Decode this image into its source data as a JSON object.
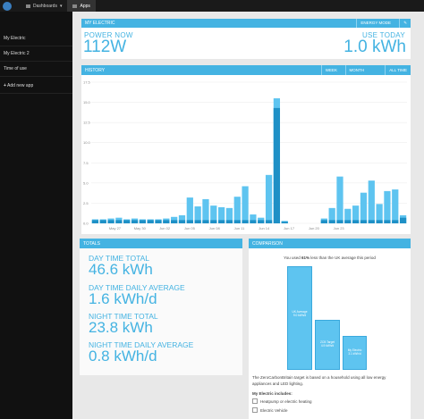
{
  "topbar": {
    "dashboards_label": "Dashboards",
    "apps_label": "Apps"
  },
  "sidebar": {
    "items": [
      "My Electric",
      "My Electric 2",
      "Time of use"
    ],
    "add_label": "Add new app"
  },
  "my_electric": {
    "title": "MY ELECTRIC",
    "mode_button": "ENERGY MODE",
    "settings_icon": "wrench-icon",
    "power_label": "POWER NOW",
    "power_value": "112W",
    "today_label": "USE TODAY",
    "today_value": "1.0 kWh"
  },
  "history": {
    "title": "HISTORY",
    "buttons": [
      "WEEK",
      "MONTH",
      "ALL TIME"
    ]
  },
  "chart_data": {
    "type": "bar",
    "title": "HISTORY",
    "ylim": [
      0,
      17.5
    ],
    "yticks": [
      "0.0",
      "2.5",
      "5.0",
      "7.5",
      "10.0",
      "12.5",
      "15.0",
      "17.5"
    ],
    "xtick_labels": [
      "May 27",
      "May 30",
      "Jun 02",
      "Jun 05",
      "Jun 08",
      "Jun 11",
      "Jun 14",
      "Jun 17",
      "Jun 20",
      "Jun 23"
    ],
    "series": [
      {
        "values": [
          0.5,
          0.5,
          0.6,
          0.7,
          0.5,
          0.6,
          0.5,
          0.5,
          0.5,
          0.6,
          0.8,
          1.0,
          3.2,
          2.1,
          3.0,
          2.2,
          2.0,
          1.9,
          3.3,
          4.6,
          1.1,
          0.7,
          6.0,
          15.5,
          0.3,
          0,
          0,
          0,
          0,
          0.6,
          1.9,
          5.8,
          1.8,
          2.2,
          3.8,
          5.3,
          2.4,
          4.0,
          4.2,
          1.0
        ]
      }
    ],
    "night_series_values": [
      0.4,
      0.4,
      0.4,
      0.4,
      0.4,
      0.4,
      0.4,
      0.4,
      0.4,
      0.4,
      0.4,
      0.4,
      0.4,
      0.4,
      0.4,
      0.4,
      0.4,
      0.4,
      0.4,
      0.4,
      0.4,
      0.4,
      0.4,
      14.3,
      0.2,
      0,
      0,
      0,
      0,
      0.4,
      0.4,
      0.4,
      0.4,
      0.4,
      0.4,
      0.4,
      0.4,
      0.4,
      0.4,
      0.7
    ]
  },
  "totals": {
    "title": "TOTALS",
    "day_total_label": "DAY TIME TOTAL",
    "day_total_value": "46.6 kWh",
    "day_avg_label": "DAY TIME DAILY AVERAGE",
    "day_avg_value": "1.6 kWh/d",
    "night_total_label": "NIGHT TIME TOTAL",
    "night_total_value": "23.8 kWh",
    "night_avg_label": "NIGHT TIME DAILY AVERAGE",
    "night_avg_value": "0.8 kWh/d"
  },
  "comparison": {
    "title": "COMPARISON",
    "intro_prefix": "You used",
    "intro_pct": "61%",
    "intro_suffix": "less than the UK average this period",
    "bars": [
      {
        "name": "UK Average",
        "value": "9.0 kWh/d"
      },
      {
        "name": "ZCB Target",
        "value": "4.9 kWh/d"
      },
      {
        "name": "My Electric",
        "value": "3.1 kWh/d"
      }
    ],
    "footnote": "The ZeroCarbonBritain target is based on a household using all low energy appliances and LED lighting.",
    "includes_title": "My Electric includes:",
    "includes": [
      "Heatpump or electric heating",
      "Electric Vehicle"
    ]
  }
}
